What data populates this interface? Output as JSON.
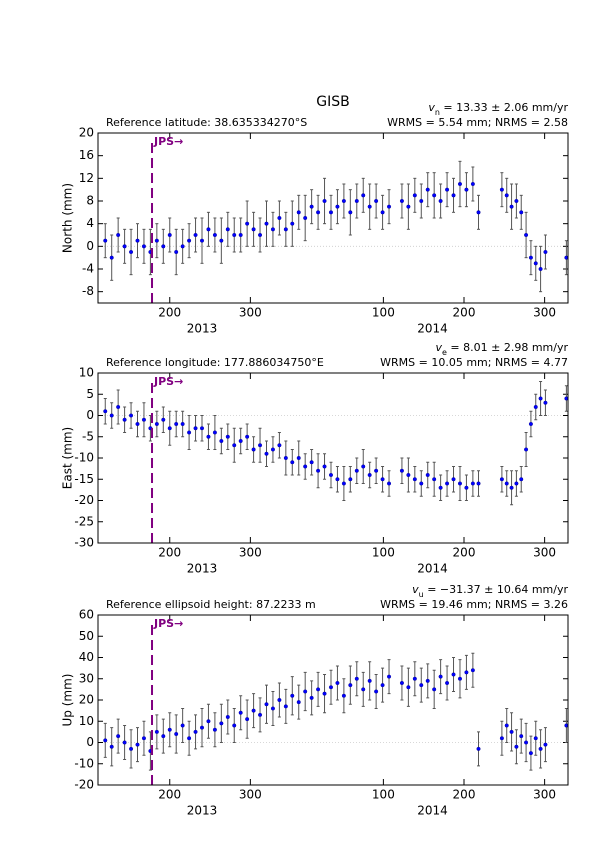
{
  "chart_data": [
    {
      "type": "scatter",
      "title": "GISB",
      "ref_text": "Reference latitude: 38.635334270°S",
      "velocity_symbol": "v",
      "velocity_sub": "n",
      "velocity_text": " = 13.33 ± 2.06 mm/yr",
      "stats_text": "WRMS = 5.54 mm; NRMS = 2.58",
      "ylabel": "North (mm)",
      "xlim": [
        111,
        694
      ],
      "ylim": [
        -10,
        20
      ],
      "yticks": [
        -8,
        -4,
        0,
        4,
        8,
        12,
        16,
        20
      ],
      "xticks": [
        {
          "value": 200,
          "label": "200"
        },
        {
          "value": 300,
          "label": "300"
        },
        {
          "value": 465,
          "label": "100"
        },
        {
          "value": 565,
          "label": "200"
        },
        {
          "value": 665,
          "label": "300"
        }
      ],
      "year_labels": [
        {
          "value": 240,
          "label": "2013"
        },
        {
          "value": 526,
          "label": "2014"
        }
      ],
      "event": {
        "x": 178,
        "label": "JPS→",
        "color": "#800080"
      },
      "color": "#0000ff",
      "error_color": "#555555",
      "x": [
        120,
        128,
        136,
        144,
        152,
        160,
        168,
        176,
        184,
        192,
        200,
        208,
        216,
        224,
        232,
        240,
        248,
        256,
        264,
        272,
        280,
        288,
        296,
        304,
        312,
        320,
        328,
        336,
        344,
        352,
        360,
        368,
        376,
        384,
        392,
        400,
        408,
        416,
        424,
        432,
        440,
        448,
        456,
        464,
        472,
        488,
        496,
        504,
        512,
        520,
        528,
        536,
        544,
        552,
        560,
        568,
        576,
        583,
        612,
        618,
        624,
        630,
        636,
        642,
        648,
        654,
        660,
        666,
        692
      ],
      "values": [
        1,
        -2,
        2,
        0,
        -1,
        1,
        0,
        -1,
        1,
        0,
        2,
        -1,
        0,
        1,
        2,
        1,
        3,
        2,
        1,
        3,
        2,
        2,
        4,
        3,
        2,
        4,
        3,
        5,
        3,
        4,
        6,
        5,
        7,
        6,
        8,
        6,
        7,
        8,
        6,
        8,
        9,
        7,
        8,
        6,
        7,
        8,
        7,
        9,
        8,
        10,
        9,
        8,
        10,
        9,
        11,
        10,
        11,
        6,
        10,
        9,
        7,
        8,
        6,
        2,
        -2,
        -3,
        -4,
        -1,
        -2
      ],
      "errors": [
        3,
        4,
        3,
        3,
        4,
        3,
        3,
        4,
        3,
        3,
        3,
        4,
        3,
        3,
        3,
        4,
        3,
        3,
        4,
        3,
        3,
        3,
        4,
        3,
        3,
        4,
        3,
        3,
        3,
        4,
        3,
        4,
        3,
        3,
        4,
        3,
        3,
        3,
        4,
        3,
        3,
        4,
        3,
        3,
        3,
        3,
        4,
        3,
        3,
        3,
        4,
        3,
        3,
        3,
        4,
        3,
        3,
        3,
        3,
        3,
        4,
        3,
        3,
        4,
        3,
        3,
        4,
        3,
        3
      ]
    },
    {
      "type": "scatter",
      "ref_text": "Reference longitude: 177.886034750°E",
      "velocity_symbol": "v",
      "velocity_sub": "e",
      "velocity_text": " = 8.01 ± 2.98 mm/yr",
      "stats_text": "WRMS = 10.05 mm; NRMS = 4.77",
      "ylabel": "East (mm)",
      "xlim": [
        111,
        694
      ],
      "ylim": [
        -30,
        10
      ],
      "yticks": [
        -30,
        -25,
        -20,
        -15,
        -10,
        -5,
        0,
        5,
        10
      ],
      "xticks": [
        {
          "value": 200,
          "label": "200"
        },
        {
          "value": 300,
          "label": "300"
        },
        {
          "value": 465,
          "label": "100"
        },
        {
          "value": 565,
          "label": "200"
        },
        {
          "value": 665,
          "label": "300"
        }
      ],
      "year_labels": [
        {
          "value": 240,
          "label": "2013"
        },
        {
          "value": 526,
          "label": "2014"
        }
      ],
      "event": {
        "x": 178,
        "label": "JPS→",
        "color": "#800080"
      },
      "color": "#0000ff",
      "error_color": "#555555",
      "x": [
        120,
        128,
        136,
        144,
        152,
        160,
        168,
        176,
        184,
        192,
        200,
        208,
        216,
        224,
        232,
        240,
        248,
        256,
        264,
        272,
        280,
        288,
        296,
        304,
        312,
        320,
        328,
        336,
        344,
        352,
        360,
        368,
        376,
        384,
        392,
        400,
        408,
        416,
        424,
        432,
        440,
        448,
        456,
        464,
        472,
        488,
        496,
        504,
        512,
        520,
        528,
        536,
        544,
        552,
        560,
        568,
        576,
        583,
        612,
        618,
        624,
        630,
        636,
        642,
        648,
        654,
        660,
        666,
        692
      ],
      "values": [
        1,
        0,
        2,
        -1,
        0,
        -2,
        -1,
        -3,
        -2,
        -1,
        -3,
        -2,
        -2,
        -4,
        -3,
        -3,
        -5,
        -4,
        -6,
        -5,
        -7,
        -6,
        -5,
        -8,
        -7,
        -9,
        -8,
        -7,
        -10,
        -11,
        -10,
        -12,
        -11,
        -13,
        -12,
        -14,
        -15,
        -16,
        -15,
        -13,
        -12,
        -14,
        -13,
        -15,
        -16,
        -13,
        -14,
        -15,
        -16,
        -14,
        -15,
        -17,
        -16,
        -15,
        -16,
        -17,
        -16,
        -16,
        -15,
        -16,
        -17,
        -16,
        -15,
        -8,
        -2,
        2,
        4,
        3,
        4
      ],
      "errors": [
        3,
        3,
        4,
        3,
        3,
        3,
        4,
        3,
        3,
        3,
        4,
        3,
        3,
        4,
        3,
        3,
        3,
        4,
        3,
        3,
        4,
        3,
        3,
        3,
        4,
        3,
        3,
        3,
        4,
        3,
        4,
        3,
        3,
        4,
        3,
        3,
        3,
        4,
        3,
        3,
        4,
        3,
        3,
        3,
        3,
        3,
        4,
        3,
        3,
        3,
        4,
        3,
        3,
        3,
        4,
        3,
        3,
        3,
        3,
        3,
        4,
        3,
        3,
        4,
        3,
        3,
        4,
        3,
        3
      ]
    },
    {
      "type": "scatter",
      "ref_text": "Reference ellipsoid height: 87.2233 m",
      "velocity_symbol": "v",
      "velocity_sub": "u",
      "velocity_text": " = −31.37 ± 10.64 mm/yr",
      "stats_text": "WRMS = 19.46 mm; NRMS = 3.26",
      "ylabel": "Up (mm)",
      "xlim": [
        111,
        694
      ],
      "ylim": [
        -20,
        60
      ],
      "yticks": [
        -20,
        -10,
        0,
        10,
        20,
        30,
        40,
        50,
        60
      ],
      "xticks": [
        {
          "value": 200,
          "label": "200"
        },
        {
          "value": 300,
          "label": "300"
        },
        {
          "value": 465,
          "label": "100"
        },
        {
          "value": 565,
          "label": "200"
        },
        {
          "value": 665,
          "label": "300"
        }
      ],
      "year_labels": [
        {
          "value": 240,
          "label": "2013"
        },
        {
          "value": 526,
          "label": "2014"
        }
      ],
      "event": {
        "x": 178,
        "label": "JPS→",
        "color": "#800080"
      },
      "color": "#0000ff",
      "error_color": "#555555",
      "x": [
        120,
        128,
        136,
        144,
        152,
        160,
        168,
        176,
        184,
        192,
        200,
        208,
        216,
        224,
        232,
        240,
        248,
        256,
        264,
        272,
        280,
        288,
        296,
        304,
        312,
        320,
        328,
        336,
        344,
        352,
        360,
        368,
        376,
        384,
        392,
        400,
        408,
        416,
        424,
        432,
        440,
        448,
        456,
        464,
        472,
        488,
        496,
        504,
        512,
        520,
        528,
        536,
        544,
        552,
        560,
        568,
        576,
        583,
        612,
        618,
        624,
        630,
        636,
        642,
        648,
        654,
        660,
        666,
        692
      ],
      "values": [
        1,
        -2,
        3,
        0,
        -3,
        -1,
        2,
        -4,
        5,
        3,
        6,
        4,
        8,
        2,
        5,
        7,
        10,
        6,
        9,
        12,
        8,
        14,
        11,
        15,
        13,
        18,
        16,
        20,
        17,
        22,
        19,
        24,
        21,
        25,
        23,
        26,
        28,
        22,
        27,
        30,
        25,
        29,
        24,
        27,
        31,
        28,
        26,
        30,
        27,
        29,
        25,
        31,
        28,
        32,
        30,
        33,
        34,
        -3,
        2,
        8,
        5,
        -2,
        3,
        0,
        -5,
        2,
        -3,
        -1,
        8
      ],
      "errors": [
        8,
        9,
        8,
        8,
        9,
        8,
        8,
        9,
        8,
        8,
        8,
        9,
        8,
        8,
        8,
        9,
        8,
        8,
        9,
        8,
        8,
        8,
        9,
        8,
        8,
        9,
        8,
        8,
        8,
        9,
        8,
        9,
        8,
        8,
        9,
        8,
        8,
        8,
        9,
        8,
        8,
        9,
        8,
        8,
        8,
        8,
        9,
        8,
        8,
        8,
        9,
        8,
        8,
        8,
        9,
        8,
        8,
        8,
        8,
        8,
        9,
        8,
        8,
        9,
        8,
        8,
        9,
        8,
        8
      ]
    }
  ]
}
